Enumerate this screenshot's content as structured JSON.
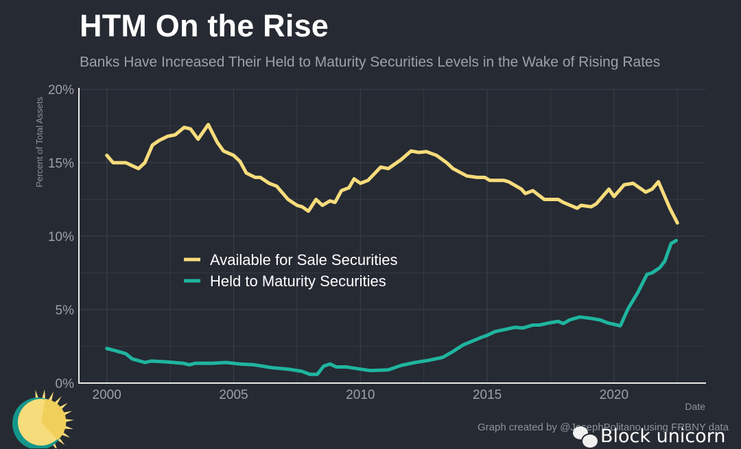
{
  "chart_data": {
    "type": "line",
    "title": "HTM On the Rise",
    "subtitle": "Banks Have Increased Their Held to Maturity Securities Levels in the Wake of Rising Rates",
    "xlabel": "Date",
    "ylabel": "Percent of Total Assets",
    "xlim": [
      1998.9,
      2023.6
    ],
    "ylim": [
      0,
      20
    ],
    "x_ticks": [
      2000,
      2005,
      2010,
      2015,
      2020
    ],
    "x_tick_labels": [
      "2000",
      "2005",
      "2010",
      "2015",
      "2020"
    ],
    "y_ticks": [
      0,
      5,
      10,
      15,
      20
    ],
    "y_tick_labels": [
      "0%",
      "5%",
      "10%",
      "15%",
      "20%"
    ],
    "grid": true,
    "legend_position": "center-left",
    "series": [
      {
        "name": "Available for Sale Securities",
        "color": "#f7dc7c",
        "x": [
          2000.0,
          2000.25,
          2000.75,
          2001.0,
          2001.25,
          2001.5,
          2001.8,
          2002.05,
          2002.4,
          2002.7,
          2003.05,
          2003.3,
          2003.6,
          2004.0,
          2004.35,
          2004.6,
          2005.0,
          2005.25,
          2005.5,
          2005.85,
          2006.05,
          2006.4,
          2006.7,
          2007.15,
          2007.5,
          2007.7,
          2007.95,
          2008.25,
          2008.5,
          2008.8,
          2009.0,
          2009.25,
          2009.55,
          2009.75,
          2010.0,
          2010.3,
          2010.8,
          2011.1,
          2011.35,
          2011.6,
          2012.0,
          2012.3,
          2012.6,
          2013.0,
          2013.4,
          2013.65,
          2014.2,
          2014.6,
          2014.9,
          2015.1,
          2015.65,
          2015.85,
          2016.35,
          2016.5,
          2016.8,
          2017.25,
          2017.8,
          2018.0,
          2018.55,
          2018.7,
          2019.1,
          2019.3,
          2019.8,
          2020.0,
          2020.4,
          2020.75,
          2021.25,
          2021.5,
          2021.75,
          2022.2,
          2022.5
        ],
        "values": [
          15.5,
          15.0,
          15.0,
          14.8,
          14.6,
          15.0,
          16.2,
          16.5,
          16.8,
          16.9,
          17.4,
          17.3,
          16.6,
          17.6,
          16.4,
          15.8,
          15.5,
          15.1,
          14.3,
          14.0,
          14.0,
          13.6,
          13.4,
          12.5,
          12.1,
          12.0,
          11.7,
          12.5,
          12.1,
          12.4,
          12.3,
          13.1,
          13.3,
          13.9,
          13.6,
          13.8,
          14.7,
          14.6,
          14.9,
          15.2,
          15.8,
          15.7,
          15.75,
          15.5,
          15.0,
          14.6,
          14.1,
          14.0,
          14.0,
          13.8,
          13.8,
          13.7,
          13.2,
          12.9,
          13.1,
          12.5,
          12.5,
          12.3,
          11.9,
          12.1,
          12.0,
          12.2,
          13.2,
          12.7,
          13.5,
          13.6,
          13.0,
          13.2,
          13.7,
          11.9,
          10.9
        ]
      },
      {
        "name": "Held to Maturity Securities",
        "color": "#1fb5a0",
        "x": [
          2000.0,
          2000.25,
          2000.75,
          2001.0,
          2001.5,
          2001.75,
          2002.3,
          2003.0,
          2003.25,
          2003.5,
          2004.15,
          2004.7,
          2005.25,
          2005.8,
          2006.5,
          2007.15,
          2007.7,
          2008.0,
          2008.3,
          2008.55,
          2008.8,
          2009.05,
          2009.45,
          2010.0,
          2010.4,
          2011.1,
          2011.6,
          2012.15,
          2012.7,
          2013.25,
          2013.65,
          2014.05,
          2014.75,
          2015.0,
          2015.3,
          2015.7,
          2016.1,
          2016.4,
          2016.8,
          2017.05,
          2017.45,
          2017.8,
          2018.0,
          2018.25,
          2018.65,
          2019.1,
          2019.45,
          2019.75,
          2020.25,
          2020.55,
          2020.95,
          2021.3,
          2021.5,
          2021.8,
          2022.0,
          2022.25,
          2022.45
        ],
        "values": [
          2.35,
          2.25,
          2.0,
          1.65,
          1.4,
          1.5,
          1.45,
          1.35,
          1.25,
          1.35,
          1.35,
          1.4,
          1.3,
          1.25,
          1.05,
          0.95,
          0.8,
          0.6,
          0.6,
          1.15,
          1.3,
          1.1,
          1.1,
          0.95,
          0.85,
          0.9,
          1.2,
          1.4,
          1.55,
          1.75,
          2.15,
          2.6,
          3.1,
          3.25,
          3.5,
          3.65,
          3.8,
          3.75,
          3.95,
          3.95,
          4.1,
          4.2,
          4.05,
          4.3,
          4.5,
          4.4,
          4.3,
          4.1,
          3.9,
          5.05,
          6.2,
          7.4,
          7.5,
          7.85,
          8.3,
          9.5,
          9.7
        ]
      }
    ]
  },
  "caption": "Graph created by @JosephPolitano using FRBNY data",
  "watermark": {
    "text": "Block unicorn",
    "icon": "wechat-icon"
  },
  "logo": "sun-logo-icon",
  "colors": {
    "background": "#262a33",
    "grid": "#3a3e47",
    "axis": "#e8e8e8",
    "tick_text": "#9ea1a8"
  }
}
